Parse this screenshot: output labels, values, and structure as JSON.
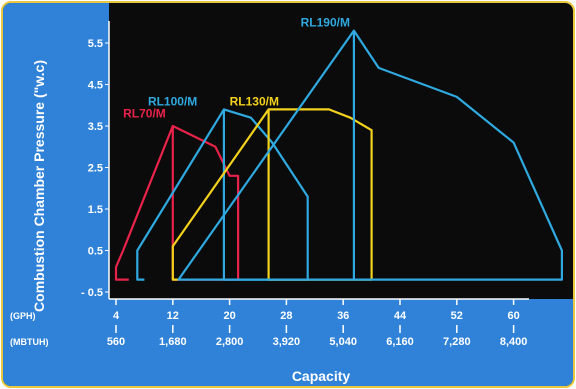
{
  "chart_data": {
    "type": "area",
    "ylabel": "Combustion Chamber Pressure (\"w.c)",
    "xlabel": "Capacity",
    "x_rows": [
      {
        "unit": "(GPH)",
        "ticks": [
          "4",
          "12",
          "20",
          "28",
          "36",
          "44",
          "52",
          "60"
        ]
      },
      {
        "unit": "(MBTUH)",
        "ticks": [
          "560",
          "1,680",
          "2,800",
          "3,920",
          "5,040",
          "6,160",
          "7,280",
          "8,400"
        ]
      }
    ],
    "y_ticks": [
      "- 0.5",
      "0.5",
      "1.5",
      "2.5",
      "3.5",
      "4.5",
      "5.5"
    ],
    "xlim": [
      4,
      67
    ],
    "ylim": [
      -0.5,
      6.2
    ],
    "series": [
      {
        "name": "RL70/M",
        "color": "#e8234a",
        "points": [
          [
            5.8,
            -0.2
          ],
          [
            4,
            -0.2
          ],
          [
            4,
            0.1
          ],
          [
            5,
            0.5
          ],
          [
            12,
            3.5
          ],
          [
            18,
            3.0
          ],
          [
            20,
            2.3
          ],
          [
            21.2,
            2.3
          ],
          [
            21.2,
            -0.2
          ],
          [
            12,
            -0.2
          ],
          [
            12,
            3.5
          ]
        ]
      },
      {
        "name": "RL100/M",
        "color": "#2fa9df",
        "points": [
          [
            8,
            -0.2
          ],
          [
            7,
            -0.2
          ],
          [
            7,
            0.5
          ],
          [
            19.2,
            3.9
          ],
          [
            23,
            3.7
          ],
          [
            26,
            3.1
          ],
          [
            31,
            1.8
          ],
          [
            31,
            -0.2
          ],
          [
            19.2,
            -0.2
          ],
          [
            19.2,
            3.9
          ]
        ]
      },
      {
        "name": "RL130/M",
        "color": "#f2d11c",
        "points": [
          [
            12.8,
            -0.2
          ],
          [
            12,
            -0.2
          ],
          [
            12,
            0.6
          ],
          [
            25.5,
            3.9
          ],
          [
            34,
            3.9
          ],
          [
            37,
            3.7
          ],
          [
            40,
            3.4
          ],
          [
            40,
            -0.2
          ],
          [
            25.5,
            -0.2
          ],
          [
            25.5,
            3.9
          ]
        ]
      },
      {
        "name": "RL190/M",
        "color": "#2fa9df",
        "points": [
          [
            12.8,
            -0.2
          ],
          [
            37.5,
            5.8
          ],
          [
            41,
            4.9
          ],
          [
            52,
            4.2
          ],
          [
            60,
            3.1
          ],
          [
            66.8,
            0.5
          ],
          [
            66.8,
            -0.2
          ],
          [
            12.8,
            -0.2
          ],
          [
            37.5,
            -0.2
          ],
          [
            37.5,
            5.8
          ]
        ]
      }
    ],
    "series_labels": [
      {
        "text": "RL70/M",
        "x": 5,
        "y": 3.7
      },
      {
        "text": "RL100/M",
        "x": 8.5,
        "y": 4.0
      },
      {
        "text": "RL130/M",
        "x": 20,
        "y": 4.0
      },
      {
        "text": "RL190/M",
        "x": 30,
        "y": 5.9
      }
    ]
  }
}
